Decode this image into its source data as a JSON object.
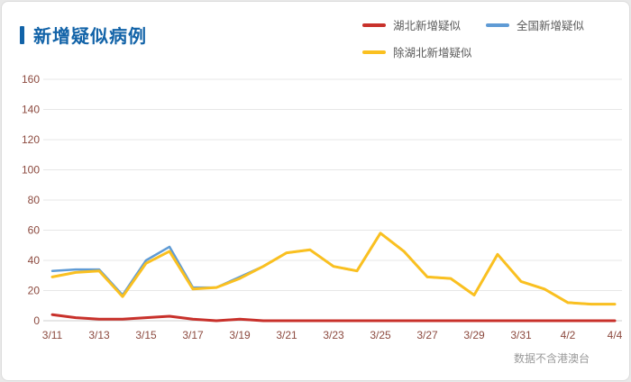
{
  "header": {
    "title": "新增疑似病例"
  },
  "footer": {
    "note": "数据不含港澳台"
  },
  "colors": {
    "accent": "#1263a8",
    "axis_label": "#8c4a3f",
    "grid": "#e7e7e7",
    "axis_line": "#cfcfcf",
    "legend_text": "#5a5a5a",
    "note_text": "#999999",
    "series_red": "#c8312b",
    "series_blue": "#5f9bd5",
    "series_yellow": "#fac020"
  },
  "chart_data": {
    "type": "line",
    "title": "新增疑似病例",
    "x": [
      "3/11",
      "3/12",
      "3/13",
      "3/14",
      "3/15",
      "3/16",
      "3/17",
      "3/18",
      "3/19",
      "3/20",
      "3/21",
      "3/22",
      "3/23",
      "3/24",
      "3/25",
      "3/26",
      "3/27",
      "3/28",
      "3/29",
      "3/30",
      "3/31",
      "4/1",
      "4/2",
      "4/3",
      "4/4"
    ],
    "x_tick_step": 2,
    "x_tick_labels": [
      "3/11",
      "3/13",
      "3/15",
      "3/17",
      "3/19",
      "3/21",
      "3/23",
      "3/25",
      "3/27",
      "3/29",
      "3/31",
      "4/2",
      "4/4"
    ],
    "series": [
      {
        "name": "湖北新增疑似",
        "color": "#c8312b",
        "values": [
          4,
          2,
          1,
          1,
          2,
          3,
          1,
          0,
          1,
          0,
          0,
          0,
          0,
          0,
          0,
          0,
          0,
          0,
          0,
          0,
          0,
          0,
          0,
          0,
          0
        ]
      },
      {
        "name": "全国新增疑似",
        "color": "#5f9bd5",
        "values": [
          33,
          34,
          34,
          17,
          40,
          49,
          22,
          22,
          29,
          36,
          45,
          47,
          36,
          33,
          58,
          46,
          29,
          28,
          17,
          44,
          26,
          21,
          12,
          11,
          11
        ]
      },
      {
        "name": "除湖北新增疑似",
        "color": "#fac020",
        "values": [
          29,
          32,
          33,
          16,
          38,
          46,
          21,
          22,
          28,
          36,
          45,
          47,
          36,
          33,
          58,
          46,
          29,
          28,
          17,
          44,
          26,
          21,
          12,
          11,
          11
        ]
      }
    ],
    "ylim": [
      0,
      160
    ],
    "y_ticks": [
      0,
      20,
      40,
      60,
      80,
      100,
      120,
      140,
      160
    ],
    "grid": true,
    "legend_position": "top-right",
    "annotation": "数据不含港澳台"
  }
}
